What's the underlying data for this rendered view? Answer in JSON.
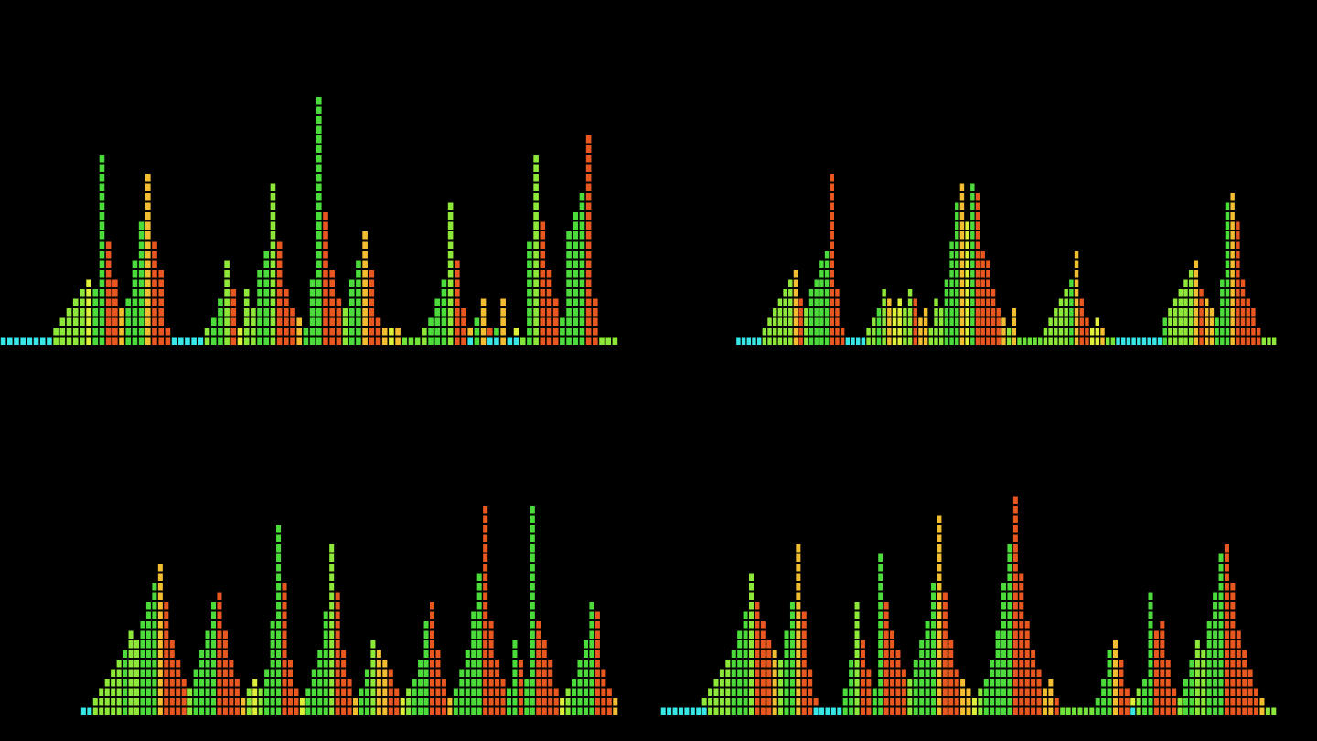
{
  "colors": {
    "background": "#000000",
    "cyan": "#37e6e6",
    "blue": "#2f5cf0",
    "green": "#3ad83a",
    "lime": "#8ee83a",
    "yellow": "#f2f23a",
    "orange": "#f29a2a",
    "red": "#e22a1a"
  },
  "chart_data": [
    {
      "type": "bar",
      "title": "",
      "xlabel": "",
      "ylabel": "",
      "ylim": [
        0,
        26
      ],
      "grid": false,
      "legend": "none",
      "values": [
        1,
        1,
        1,
        1,
        1,
        1,
        1,
        1,
        2,
        3,
        4,
        5,
        6,
        7,
        6,
        20,
        11,
        7,
        4,
        5,
        9,
        13,
        18,
        11,
        8,
        2,
        1,
        1,
        1,
        1,
        1,
        2,
        3,
        5,
        9,
        6,
        2,
        6,
        4,
        8,
        10,
        17,
        11,
        6,
        4,
        3,
        2,
        7,
        26,
        14,
        8,
        5,
        4,
        7,
        9,
        12,
        8,
        3,
        2,
        2,
        2,
        1,
        1,
        1,
        2,
        3,
        5,
        7,
        15,
        9,
        4,
        2,
        3,
        5,
        2,
        2,
        5,
        1,
        2,
        1,
        11,
        20,
        13,
        8,
        5,
        3,
        12,
        14,
        16,
        22,
        5,
        1,
        1,
        1
      ]
    },
    {
      "type": "bar",
      "title": "",
      "xlabel": "",
      "ylabel": "",
      "ylim": [
        0,
        26
      ],
      "grid": false,
      "legend": "none",
      "values": [
        0,
        0,
        0,
        0,
        0,
        0,
        0,
        0,
        0,
        0,
        0,
        1,
        1,
        1,
        1,
        1,
        2,
        3,
        4,
        5,
        6,
        7,
        8,
        5,
        4,
        6,
        7,
        9,
        10,
        18,
        6,
        2,
        1,
        1,
        1,
        1,
        2,
        3,
        4,
        6,
        5,
        4,
        5,
        4,
        6,
        5,
        3,
        4,
        2,
        5,
        4,
        7,
        11,
        15,
        17,
        13,
        17,
        16,
        10,
        9,
        6,
        4,
        3,
        2,
        4,
        1,
        1,
        1,
        1,
        1,
        2,
        3,
        4,
        5,
        6,
        7,
        10,
        5,
        3,
        2,
        3,
        2,
        1,
        1,
        1,
        1,
        1,
        1,
        1,
        1,
        1,
        1,
        1,
        3,
        4,
        5,
        6,
        7,
        8,
        9,
        6,
        5,
        4,
        3,
        7,
        15,
        16,
        13,
        7,
        5,
        4,
        2,
        1,
        1,
        1
      ]
    },
    {
      "type": "bar",
      "title": "",
      "xlabel": "",
      "ylabel": "",
      "ylim": [
        0,
        26
      ],
      "grid": false,
      "legend": "none",
      "values": [
        0,
        0,
        0,
        0,
        0,
        0,
        0,
        0,
        0,
        1,
        1,
        2,
        3,
        4,
        5,
        6,
        7,
        9,
        8,
        10,
        12,
        14,
        16,
        12,
        8,
        6,
        4,
        3,
        5,
        7,
        9,
        12,
        13,
        9,
        6,
        4,
        2,
        3,
        4,
        3,
        5,
        10,
        20,
        14,
        6,
        3,
        2,
        3,
        5,
        7,
        11,
        18,
        13,
        7,
        4,
        2,
        3,
        5,
        8,
        7,
        6,
        5,
        3,
        2,
        3,
        4,
        6,
        10,
        12,
        7,
        4,
        2,
        3,
        5,
        7,
        11,
        15,
        22,
        10,
        6,
        4,
        3,
        8,
        6,
        4,
        22,
        10,
        8,
        6,
        3,
        2,
        3,
        4,
        6,
        8,
        12,
        11,
        5,
        3,
        2
      ]
    },
    {
      "type": "bar",
      "title": "",
      "xlabel": "",
      "ylabel": "",
      "ylim": [
        0,
        26
      ],
      "grid": false,
      "legend": "none",
      "values": [
        1,
        1,
        1,
        1,
        1,
        1,
        1,
        2,
        3,
        4,
        5,
        6,
        7,
        9,
        11,
        15,
        12,
        10,
        8,
        7,
        6,
        9,
        12,
        18,
        11,
        5,
        2,
        1,
        1,
        1,
        1,
        3,
        6,
        12,
        8,
        5,
        3,
        17,
        12,
        9,
        7,
        5,
        4,
        6,
        8,
        10,
        14,
        21,
        13,
        8,
        5,
        4,
        3,
        2,
        3,
        4,
        6,
        9,
        14,
        18,
        23,
        15,
        10,
        7,
        5,
        3,
        4,
        2,
        1,
        1,
        1,
        1,
        1,
        1,
        2,
        4,
        7,
        8,
        6,
        3,
        2,
        3,
        4,
        13,
        9,
        10,
        6,
        3,
        2,
        4,
        6,
        8,
        7,
        10,
        13,
        17,
        18,
        14,
        9,
        7,
        5,
        3,
        2,
        1,
        1
      ]
    }
  ]
}
